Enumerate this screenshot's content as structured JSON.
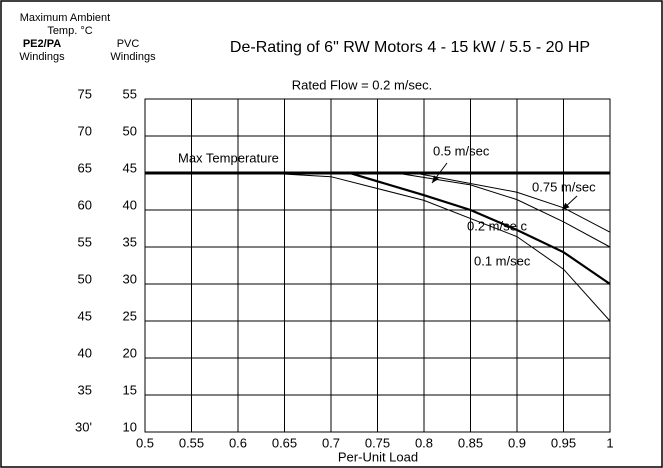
{
  "chart_data": {
    "type": "line",
    "title": "De-Rating of 6\" RW Motors  4 - 15 kW / 5.5 - 20 HP",
    "subtitle": "Rated Flow = 0.2 m/sec.",
    "xlabel": "Per-Unit Load",
    "header_ambient": "Maximum Ambient",
    "header_temp": "Temp. °C",
    "header_pe": "PE2/PA",
    "header_pe_sub": "Windings",
    "header_pvc": "PVC",
    "header_pvc_sub": "Windings",
    "xlim": [
      0.5,
      1
    ],
    "xticks": [
      0.5,
      0.55,
      0.6,
      0.65,
      0.7,
      0.75,
      0.8,
      0.85,
      0.9,
      0.95,
      1
    ],
    "ylim": [
      10,
      55
    ],
    "yticks": [
      10,
      15,
      20,
      25,
      30,
      35,
      40,
      45,
      50,
      55
    ],
    "y2lim": [
      30,
      75
    ],
    "y2ticks": [
      {
        "value": 30,
        "label": "30'"
      },
      35,
      40,
      45,
      50,
      55,
      60,
      65,
      70,
      75
    ],
    "grid": true,
    "hlines": [
      {
        "value": 45,
        "label": "Max Temperature"
      }
    ],
    "series": [
      {
        "name": "0.1 m/sec",
        "color": "#000000",
        "linewidth": 1,
        "x": [
          0.63,
          0.7,
          0.8,
          0.9,
          0.95,
          1
        ],
        "values": [
          45,
          44.5,
          41.3,
          36.4,
          32,
          25
        ]
      },
      {
        "name": "0.2 m/se c",
        "color": "#000000",
        "linewidth": 2.2,
        "x": [
          0.72,
          0.8,
          0.85,
          0.9,
          0.95,
          1
        ],
        "values": [
          45,
          42,
          40,
          37.3,
          34.3,
          30
        ]
      },
      {
        "name": "0.5 m/sec",
        "color": "#000000",
        "linewidth": 1,
        "x": [
          0.77,
          0.85,
          0.9,
          0.95,
          1
        ],
        "values": [
          45,
          43.4,
          41.4,
          38.4,
          35
        ]
      },
      {
        "name": "0.75 m/sec",
        "color": "#000000",
        "linewidth": 1,
        "x": [
          0.79,
          0.9,
          0.95,
          1
        ],
        "values": [
          45,
          42.4,
          40.3,
          37
        ]
      }
    ]
  }
}
